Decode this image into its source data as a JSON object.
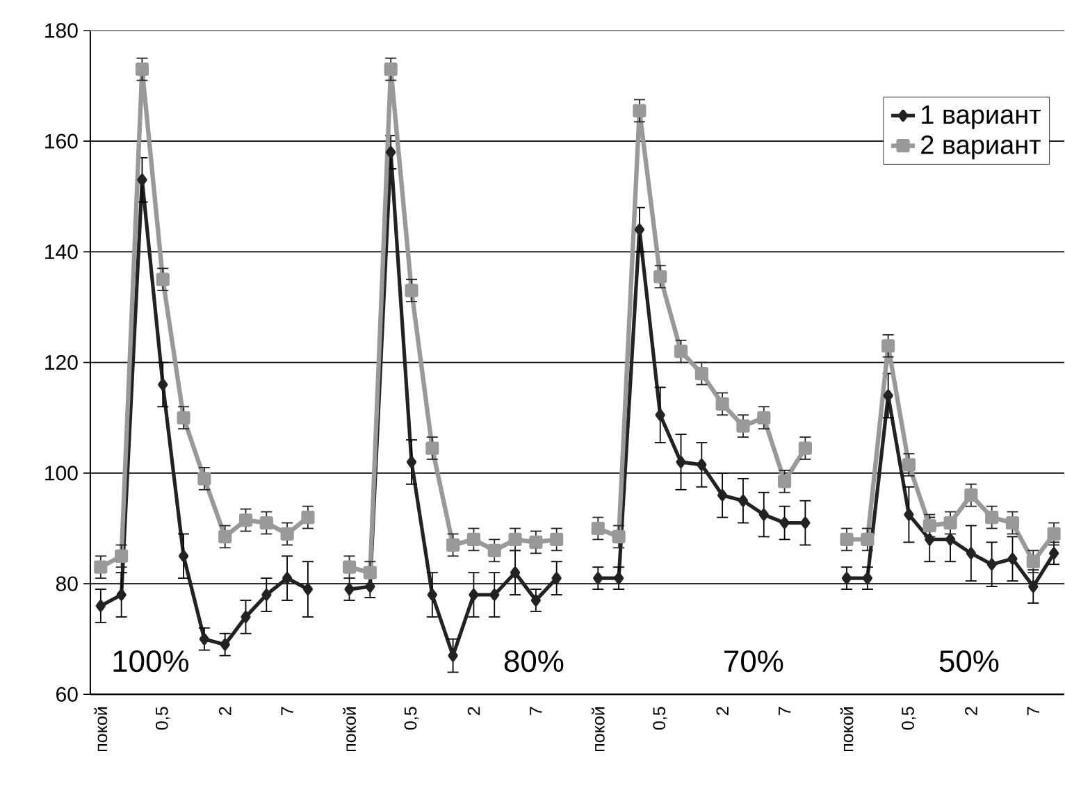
{
  "chart_data": {
    "type": "line",
    "categories": [
      "покой",
      null,
      null,
      "0,5",
      null,
      null,
      "2",
      null,
      null,
      "7",
      null,
      null,
      "покой",
      null,
      null,
      "0,5",
      null,
      null,
      "2",
      null,
      null,
      "7",
      null,
      null,
      "покой",
      null,
      null,
      "0,5",
      null,
      null,
      "2",
      null,
      null,
      "7",
      null,
      null,
      "покой",
      null,
      null,
      "0,5",
      null,
      null,
      "2",
      null,
      null,
      "7",
      null
    ],
    "series": [
      {
        "name": "1 вариант",
        "color": "#222222",
        "marker": "diamond",
        "values": [
          76,
          78,
          153,
          116,
          85,
          70,
          69,
          74,
          78,
          81,
          79,
          null,
          79,
          79.5,
          158,
          102,
          78,
          67,
          78,
          78,
          82,
          77,
          81,
          null,
          81,
          81,
          144,
          110.5,
          102,
          101.5,
          96,
          95,
          92.5,
          91,
          91,
          null,
          81,
          81,
          114,
          92.5,
          88,
          88,
          85.5,
          83.5,
          84.5,
          79.5,
          85.5
        ],
        "errors": [
          3,
          4,
          4,
          4,
          4,
          2,
          2,
          3,
          3,
          4,
          5,
          null,
          2,
          2,
          3,
          4,
          4,
          3,
          4,
          4,
          4,
          2,
          3,
          null,
          2,
          2,
          4,
          5,
          5,
          4,
          4,
          4,
          4,
          3,
          4,
          null,
          2,
          2,
          4,
          5,
          4,
          4,
          5,
          4,
          4,
          3,
          2
        ]
      },
      {
        "name": "2 вариант",
        "color": "#999999",
        "marker": "square",
        "values": [
          83,
          85,
          173,
          135,
          110,
          99,
          88.5,
          91.5,
          91,
          89,
          92,
          null,
          83,
          82,
          173,
          133,
          104.5,
          87,
          88,
          86,
          88,
          87.5,
          88,
          null,
          90,
          88.5,
          165.5,
          135.5,
          122,
          118,
          112.5,
          108.5,
          110,
          98.5,
          104.5,
          null,
          88,
          88,
          123,
          101.5,
          90.5,
          91,
          96,
          92,
          91,
          84,
          89
        ],
        "errors": [
          2,
          2,
          2,
          2,
          2,
          2,
          2,
          2,
          2,
          2,
          2,
          null,
          2,
          2,
          2,
          2,
          2,
          2,
          2,
          2,
          2,
          2,
          2,
          null,
          2,
          2,
          2,
          2,
          2,
          2,
          2,
          2,
          2,
          2,
          2,
          null,
          2,
          2,
          2,
          2,
          2,
          2,
          2,
          2,
          2,
          2,
          2
        ]
      }
    ],
    "ylim": [
      60,
      180
    ],
    "yticks": [
      60,
      80,
      100,
      120,
      140,
      160,
      180
    ],
    "grid": "y",
    "legend": "top right",
    "line_style": "solid",
    "annotations": [
      "100%",
      "80%",
      "70%",
      "50%"
    ]
  }
}
